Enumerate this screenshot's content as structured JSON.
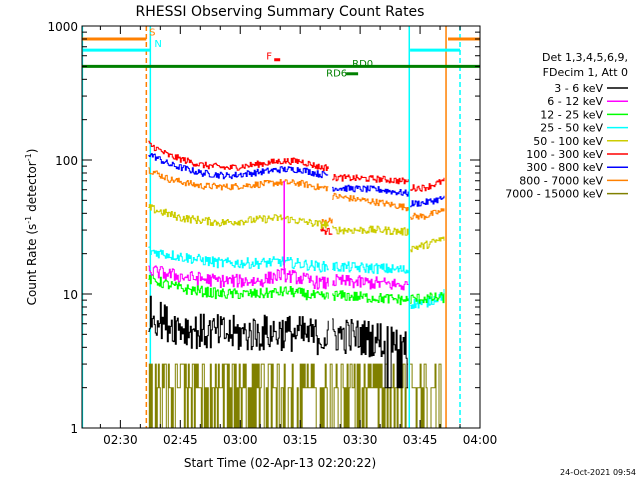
{
  "chart_data": {
    "type": "line",
    "title": "RHESSI Observing Summary Count Rates",
    "xlabel": "Start Time (02-Apr-13 02:20:22)",
    "ylabel_main": "Count Rate (s",
    "ylabel_sup1": "-1",
    "ylabel_mid": " detector",
    "ylabel_sup2": "-1",
    "ylabel_end": ")",
    "y_scale": "log",
    "ylim": [
      1,
      1000
    ],
    "xlim_minutes": [
      20.4,
      120
    ],
    "x_tick_labels": [
      "02:30",
      "02:45",
      "03:00",
      "03:15",
      "03:30",
      "03:45",
      "04:00"
    ],
    "x_tick_minutes": [
      30,
      45,
      60,
      75,
      90,
      105,
      120
    ],
    "y_tick_labels": [
      "1",
      "10",
      "100",
      "1000"
    ],
    "y_tick_values": [
      1,
      10,
      100,
      1000
    ],
    "timestamp": "24-Oct-2021 09:54",
    "legend_header": [
      "Det 1,3,4,5,6,9,",
      "FDecim 1, Att 0"
    ],
    "series": [
      {
        "name": "3 - 6 keV",
        "color": "#000000",
        "segments": [
          [
            37,
            82,
            [
              [
                37,
                7.2
              ],
              [
                42,
                6.0
              ],
              [
                50,
                5.2
              ],
              [
                60,
                5.0
              ],
              [
                70,
                5.2
              ],
              [
                80,
                4.8
              ]
            ]
          ],
          [
            83,
            102,
            [
              [
                83,
                5.0
              ],
              [
                95,
                4.6
              ],
              [
                102,
                4.3
              ]
            ]
          ]
        ],
        "noise": 0.14
      },
      {
        "name": "6 - 12 keV",
        "color": "#ff00ff",
        "segments": [
          [
            37,
            82,
            [
              [
                37,
                15
              ],
              [
                45,
                13.5
              ],
              [
                55,
                12.5
              ],
              [
                65,
                12.5
              ],
              [
                70,
                14
              ],
              [
                73,
                13.5
              ],
              [
                80,
                12
              ]
            ]
          ],
          [
            83,
            102,
            [
              [
                83,
                12.5
              ],
              [
                95,
                12
              ],
              [
                102,
                11.5
              ]
            ]
          ]
        ],
        "noise": 0.05
      },
      {
        "name": "12 - 25 keV",
        "color": "#00ff00",
        "segments": [
          [
            37,
            82,
            [
              [
                37,
                13
              ],
              [
                45,
                11
              ],
              [
                55,
                10
              ],
              [
                65,
                10
              ],
              [
                72,
                10.5
              ],
              [
                80,
                9.5
              ]
            ]
          ],
          [
            83,
            102,
            [
              [
                83,
                9.8
              ],
              [
                95,
                9.3
              ],
              [
                102,
                9
              ]
            ]
          ],
          [
            102.5,
            111,
            [
              [
                102.5,
                9.2
              ],
              [
                111,
                9.4
              ]
            ]
          ]
        ],
        "noise": 0.04
      },
      {
        "name": "25 - 50 keV",
        "color": "#00ffff",
        "segments": [
          [
            37,
            82,
            [
              [
                37,
                21
              ],
              [
                45,
                19
              ],
              [
                55,
                17
              ],
              [
                65,
                17
              ],
              [
                70,
                17.5
              ],
              [
                80,
                16
              ]
            ]
          ],
          [
            83,
            102,
            [
              [
                83,
                16
              ],
              [
                95,
                15.5
              ],
              [
                102,
                15
              ]
            ]
          ],
          [
            102.5,
            111,
            [
              [
                102.5,
                8.5
              ],
              [
                106,
                8.5
              ],
              [
                111,
                10
              ]
            ]
          ]
        ],
        "noise": 0.04
      },
      {
        "name": "50 - 100 keV",
        "color": "#cccc00",
        "segments": [
          [
            37,
            82,
            [
              [
                37,
                44
              ],
              [
                45,
                37
              ],
              [
                55,
                34
              ],
              [
                65,
                36
              ],
              [
                70,
                37
              ],
              [
                80,
                33
              ]
            ]
          ],
          [
            83,
            102,
            [
              [
                83,
                30
              ],
              [
                95,
                30
              ],
              [
                102,
                29
              ]
            ]
          ],
          [
            102.5,
            111,
            [
              [
                102.5,
                22
              ],
              [
                106,
                23
              ],
              [
                111,
                26
              ]
            ]
          ]
        ],
        "noise": 0.03
      },
      {
        "name": "100 - 300 keV",
        "color": "#ff0000",
        "segments": [
          [
            37,
            82,
            [
              [
                37,
                132
              ],
              [
                42,
                108
              ],
              [
                50,
                92
              ],
              [
                57,
                87
              ],
              [
                70,
                98
              ],
              [
                75,
                98
              ],
              [
                80,
                88
              ]
            ]
          ],
          [
            80,
            83,
            [
              [
                80,
                30
              ],
              [
                83,
                29
              ]
            ]
          ],
          [
            83,
            102,
            [
              [
                83,
                74
              ],
              [
                95,
                72
              ],
              [
                102,
                69
              ]
            ]
          ],
          [
            102.5,
            111,
            [
              [
                102.5,
                62
              ],
              [
                106,
                62
              ],
              [
                111,
                70
              ]
            ]
          ]
        ],
        "noise": 0.025
      },
      {
        "name": "300 - 800 keV",
        "color": "#0000ff",
        "segments": [
          [
            37,
            82,
            [
              [
                37,
                112
              ],
              [
                42,
                93
              ],
              [
                50,
                80
              ],
              [
                57,
                76
              ],
              [
                70,
                85
              ],
              [
                75,
                85
              ],
              [
                80,
                78
              ]
            ]
          ],
          [
            83,
            102,
            [
              [
                83,
                62
              ],
              [
                95,
                60
              ],
              [
                102,
                56
              ]
            ]
          ],
          [
            102.5,
            111,
            [
              [
                102.5,
                47
              ],
              [
                106,
                48
              ],
              [
                111,
                52
              ]
            ]
          ]
        ],
        "noise": 0.025
      },
      {
        "name": "800 - 7000 keV",
        "color": "#ff8000",
        "segments": [
          [
            37,
            82,
            [
              [
                37,
                85
              ],
              [
                42,
                72
              ],
              [
                50,
                64
              ],
              [
                57,
                63
              ],
              [
                70,
                68
              ],
              [
                75,
                67
              ],
              [
                80,
                62
              ]
            ]
          ],
          [
            80,
            83,
            [
              [
                80,
                34
              ],
              [
                83,
                36
              ]
            ]
          ],
          [
            83,
            102,
            [
              [
                83,
                54
              ],
              [
                95,
                48
              ],
              [
                102,
                44
              ]
            ]
          ],
          [
            102.5,
            111,
            [
              [
                102.5,
                38
              ],
              [
                106,
                38
              ],
              [
                111,
                42
              ]
            ]
          ]
        ],
        "noise": 0.025
      },
      {
        "name": "7000 - 15000 keV",
        "color": "#808000",
        "segments": [
          [
            37,
            102,
            [
              [
                37,
                2.5
              ],
              [
                50,
                2.2
              ],
              [
                60,
                2.2
              ],
              [
                70,
                2.0
              ],
              [
                80,
                2.0
              ],
              [
                90,
                2.0
              ],
              [
                102,
                2.0
              ]
            ]
          ],
          [
            102.5,
            111,
            [
              [
                102.5,
                2.0
              ],
              [
                111,
                2.0
              ]
            ]
          ]
        ],
        "noise": 0.35
      }
    ],
    "flag_bars": [
      {
        "label": "S",
        "color": "#ff8000",
        "x_range": [
          20.4,
          36.5
        ],
        "level": 800
      },
      {
        "label": "N",
        "color": "#00ffff",
        "x_range": [
          20.4,
          37.5
        ],
        "level": 660
      },
      {
        "label": "",
        "color": "#ff8000",
        "x_range": [
          112,
          120
        ],
        "level": 800
      },
      {
        "label": "",
        "color": "#00ffff",
        "x_range": [
          102.5,
          115
        ],
        "level": 660
      }
    ],
    "flag_labels": [
      {
        "text": "S",
        "color": "#ff8000",
        "x": 37.2,
        "y": 850
      },
      {
        "text": "N",
        "color": "#00ffff",
        "x": 38.5,
        "y": 700
      },
      {
        "text": "F",
        "color": "#ff0000",
        "x": 66.5,
        "y": 560
      },
      {
        "text": "RD0",
        "color": "#008000",
        "x": 88,
        "y": 495
      },
      {
        "text": "RD6",
        "color": "#008000",
        "x": 81.5,
        "y": 420
      }
    ],
    "rd0_bar": {
      "color": "#008000",
      "x_range": [
        20.4,
        120
      ],
      "level": 500
    },
    "rd6_bar": {
      "color": "#008000",
      "x_range": [
        86.5,
        89.5
      ],
      "level": 440
    },
    "f_bar": {
      "color": "#ff0000",
      "x_range": [
        68.5,
        70
      ],
      "level": 560
    },
    "vertical_markers": [
      {
        "x": 20.5,
        "color": "#00ffff",
        "dashed": false
      },
      {
        "x": 36.5,
        "color": "#ff8000",
        "dashed": true
      },
      {
        "x": 37.5,
        "color": "#00ffff",
        "dashed": false
      },
      {
        "x": 102.3,
        "color": "#00ffff",
        "dashed": false
      },
      {
        "x": 111.5,
        "color": "#ff8000",
        "dashed": false
      },
      {
        "x": 115,
        "color": "#00ffff",
        "dashed": true
      }
    ],
    "spike": {
      "x": 71,
      "peak": 70,
      "color": "#ff00ff"
    }
  }
}
